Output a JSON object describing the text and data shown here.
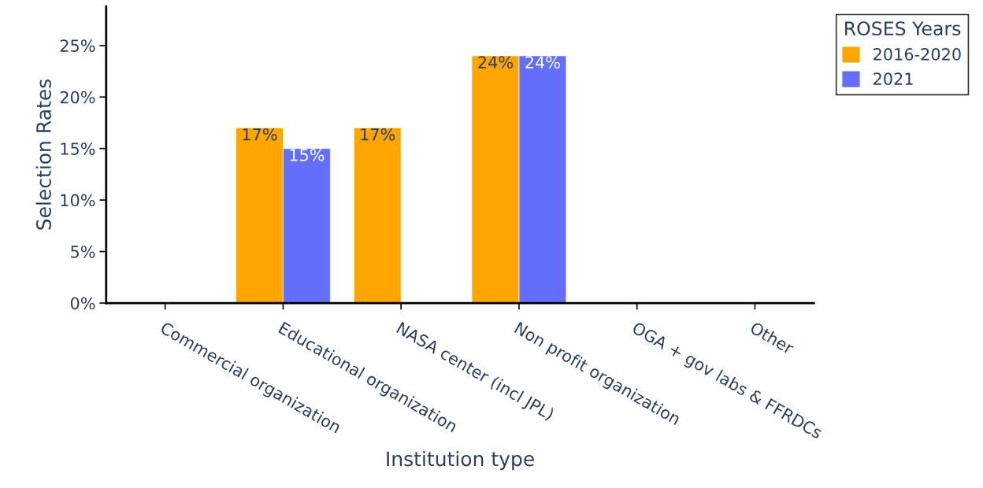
{
  "chart_data": {
    "type": "bar",
    "xlabel": "Institution type",
    "ylabel": "Selection Rates",
    "legend_title": "ROSES Years",
    "categories": [
      "Commercial organization",
      "Educational organization",
      "NASA center (incl JPL)",
      "Non profit organization",
      "OGA + gov labs & FFRDCs",
      "Other"
    ],
    "series": [
      {
        "name": "2016-2020",
        "color": "#ffa500",
        "values": [
          null,
          17,
          17,
          24,
          null,
          null
        ],
        "value_labels": [
          null,
          "17%",
          "17%",
          "24%",
          null,
          null
        ]
      },
      {
        "name": "2021",
        "color": "#636efa",
        "values": [
          null,
          15,
          null,
          24,
          null,
          null
        ],
        "value_labels": [
          null,
          "15%",
          null,
          "24%",
          null,
          null
        ]
      }
    ],
    "ylim": [
      0,
      28.8
    ],
    "yticks": [
      {
        "value": 0,
        "label": "0%"
      },
      {
        "value": 5,
        "label": "5%"
      },
      {
        "value": 10,
        "label": "10%"
      },
      {
        "value": 15,
        "label": "15%"
      },
      {
        "value": 20,
        "label": "20%"
      },
      {
        "value": 25,
        "label": "25%"
      }
    ],
    "grid": false,
    "legend": "top right"
  }
}
